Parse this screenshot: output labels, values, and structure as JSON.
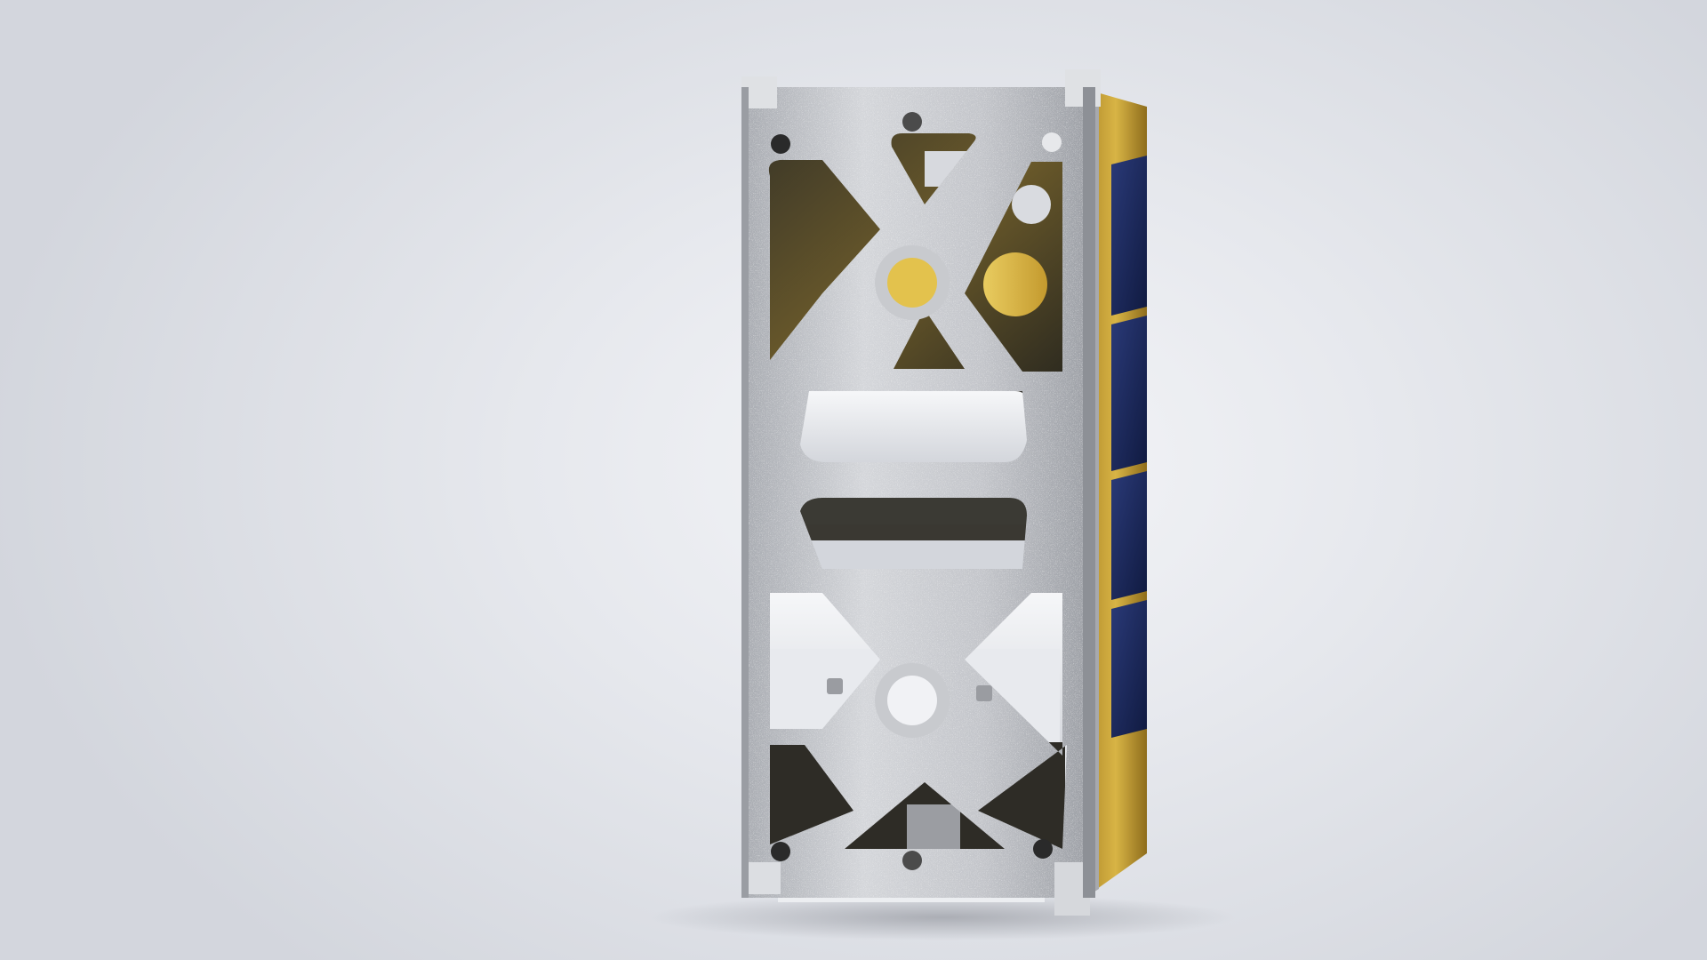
{
  "scene": {
    "subject": "cubesat-render",
    "colors": {
      "background": "#e4e6eb",
      "frame": "#c9cbcf",
      "frame_shadow": "#8a8d93",
      "gold_foil": "#c9a33a",
      "solar_cell": "#1d2a5c",
      "board_white": "#eceef2",
      "interior_dark": "#2b2a22"
    }
  }
}
